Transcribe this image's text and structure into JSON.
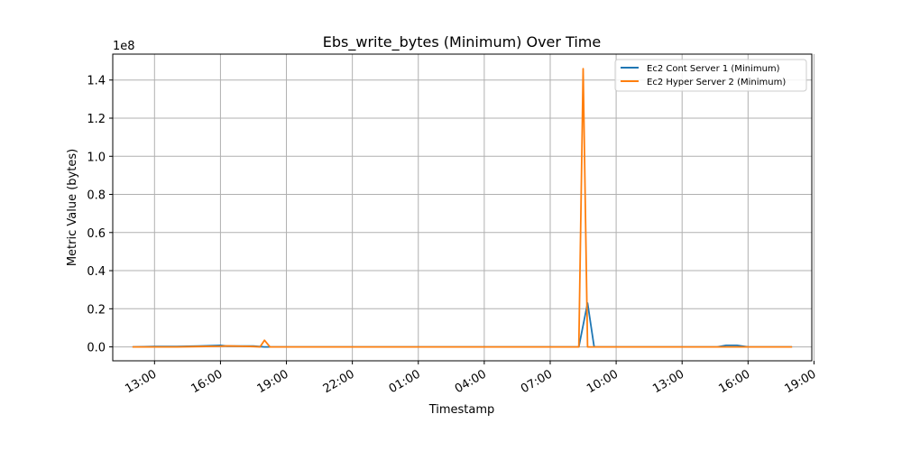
{
  "chart_data": {
    "type": "line",
    "title": "Ebs_write_bytes (Minimum) Over Time",
    "xlabel": "Timestamp",
    "ylabel": "Metric Value (bytes)",
    "y_scale_label": "1e8",
    "y_scale": 100000000,
    "ylim": [
      -0.073,
      1.536
    ],
    "xlim": [
      -0.9,
      30.9
    ],
    "x_unit": "hours",
    "x_ticks": [
      {
        "x": 1,
        "label": "13:00"
      },
      {
        "x": 4,
        "label": "16:00"
      },
      {
        "x": 7,
        "label": "19:00"
      },
      {
        "x": 10,
        "label": "22:00"
      },
      {
        "x": 13,
        "label": "01:00"
      },
      {
        "x": 16,
        "label": "04:00"
      },
      {
        "x": 19,
        "label": "07:00"
      },
      {
        "x": 22,
        "label": "10:00"
      },
      {
        "x": 25,
        "label": "13:00"
      },
      {
        "x": 28,
        "label": "16:00"
      },
      {
        "x": 31,
        "label": "19:00"
      }
    ],
    "y_ticks": [
      {
        "y": 0.0,
        "label": "0.0"
      },
      {
        "y": 0.2,
        "label": "0.2"
      },
      {
        "y": 0.4,
        "label": "0.4"
      },
      {
        "y": 0.6,
        "label": "0.6"
      },
      {
        "y": 0.8,
        "label": "0.8"
      },
      {
        "y": 1.0,
        "label": "1.0"
      },
      {
        "y": 1.2,
        "label": "1.2"
      },
      {
        "y": 1.4,
        "label": "1.4"
      }
    ],
    "grid": true,
    "legend_position": "top-right",
    "series": [
      {
        "name": "Ec2 Cont Server 1 (Minimum)",
        "color": "#1f77b4",
        "points": [
          [
            0,
            0.0
          ],
          [
            1,
            0.002
          ],
          [
            2,
            0.002
          ],
          [
            3,
            0.004
          ],
          [
            3.5,
            0.006
          ],
          [
            4,
            0.008
          ],
          [
            4.3,
            0.004
          ],
          [
            5,
            0.004
          ],
          [
            5.5,
            0.004
          ],
          [
            6,
            0.0
          ],
          [
            6.3,
            0.0
          ],
          [
            7,
            0.0
          ],
          [
            10,
            0.0
          ],
          [
            13,
            0.0
          ],
          [
            16,
            0.0
          ],
          [
            19,
            0.0
          ],
          [
            20.3,
            0.0
          ],
          [
            20.7,
            0.23
          ],
          [
            21,
            0.0
          ],
          [
            24,
            0.0
          ],
          [
            26.6,
            0.0
          ],
          [
            27,
            0.008
          ],
          [
            27.5,
            0.008
          ],
          [
            28,
            0.0
          ],
          [
            29,
            0.0
          ],
          [
            30,
            0.0
          ]
        ]
      },
      {
        "name": "Ec2 Hyper Server 2 (Minimum)",
        "color": "#ff7f0e",
        "points": [
          [
            0,
            0.0
          ],
          [
            1,
            0.0
          ],
          [
            2,
            0.0
          ],
          [
            3,
            0.002
          ],
          [
            4,
            0.003
          ],
          [
            4.3,
            0.005
          ],
          [
            5,
            0.003
          ],
          [
            5.5,
            0.002
          ],
          [
            5.8,
            0.0
          ],
          [
            6.0,
            0.035
          ],
          [
            6.25,
            0.0
          ],
          [
            7,
            0.0
          ],
          [
            10,
            0.0
          ],
          [
            13,
            0.0
          ],
          [
            16,
            0.0
          ],
          [
            19,
            0.0
          ],
          [
            20.3,
            0.0
          ],
          [
            20.5,
            1.46
          ],
          [
            20.7,
            0.0
          ],
          [
            22,
            0.0
          ],
          [
            25,
            0.0
          ],
          [
            27,
            0.0
          ],
          [
            28,
            0.0
          ],
          [
            29,
            0.0
          ],
          [
            30,
            0.0
          ]
        ]
      }
    ]
  }
}
